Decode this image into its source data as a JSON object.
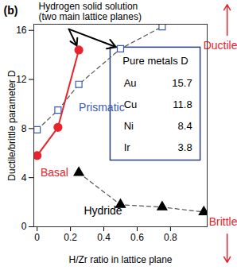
{
  "chart_data": {
    "type": "line",
    "title": "(b)",
    "x_label": "H/Zr ratio in lattice plane",
    "y_label": "Ductile/brittle parameter D",
    "xlim": [
      -0.02,
      1.02
    ],
    "xticks": [
      0,
      0.2,
      0.4,
      0.6,
      0.8
    ],
    "ylim": [
      0,
      16.5
    ],
    "yticks": [
      0,
      4,
      8,
      12,
      16
    ],
    "series": [
      {
        "name": "Basal",
        "color": "#e8232b",
        "marker": "circle",
        "line_style": "solid",
        "x": [
          0,
          0.125,
          0.25
        ],
        "values": [
          5.8,
          8.1,
          14.4
        ]
      },
      {
        "name": "Prismatic",
        "color": "#3a5bb0",
        "marker": "square",
        "line_style": "dashed",
        "x": [
          0,
          0.125,
          0.25,
          0.5,
          0.75
        ],
        "values": [
          7.9,
          9.5,
          11.6,
          14.5,
          16.3
        ]
      },
      {
        "name": "Hydride",
        "color": "#000000",
        "marker": "triangle",
        "line_style": "dashed",
        "x": [
          0.25,
          0.5,
          0.75,
          1.0
        ],
        "values": [
          4.4,
          1.8,
          1.6,
          1.2
        ]
      }
    ],
    "annotations": [
      {
        "text": "Hydrogen solid solution\n(two main lattice planes)",
        "points_to": [
          {
            "series": "Basal",
            "x": 0.25
          },
          {
            "series": "Prismatic",
            "x": 0.5
          }
        ]
      }
    ],
    "inset": {
      "title": "Pure metals D",
      "rows": [
        {
          "label": "Au",
          "value": 15.7
        },
        {
          "label": "Cu",
          "value": 11.8
        },
        {
          "label": "Ni",
          "value": 8.4
        },
        {
          "label": "Ir",
          "value": 3.8
        }
      ]
    },
    "ductile_label": "Ductile",
    "brittle_label": "Brittle",
    "label_color": "#e8232b"
  }
}
